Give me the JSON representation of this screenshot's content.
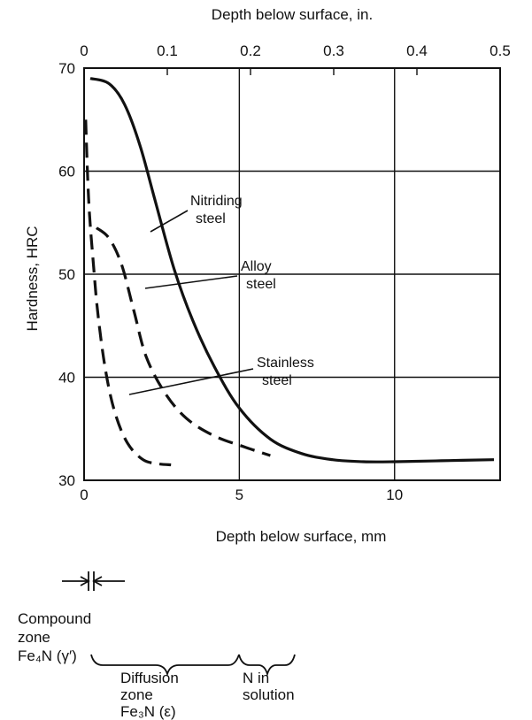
{
  "chart_data": {
    "type": "line",
    "title": "",
    "xlabel": "Depth below surface, mm",
    "x2label": "Depth below surface, in.",
    "ylabel": "Hardness, HRC",
    "xlim": [
      0,
      13.4
    ],
    "x2lim": [
      0,
      0.5
    ],
    "ylim": [
      30,
      70
    ],
    "xticks": [
      0,
      5,
      10
    ],
    "xtick_labels": [
      "0",
      "5",
      "10"
    ],
    "x2ticks": [
      0,
      0.1,
      0.2,
      0.3,
      0.4,
      0.5
    ],
    "x2tick_labels": [
      "0",
      "0.1",
      "0.2",
      "0.3",
      "0.4",
      "0.5"
    ],
    "yticks": [
      30,
      40,
      50,
      60,
      70
    ],
    "ytick_labels": [
      "30",
      "40",
      "50",
      "60",
      "70"
    ],
    "grid": true,
    "legend": "none",
    "series": [
      {
        "name": "Nitriding steel",
        "style": "solid",
        "x": [
          0.2,
          0.8,
          1.3,
          1.8,
          2.3,
          2.9,
          3.5,
          4.2,
          5.0,
          6.0,
          7.0,
          8.0,
          9.0,
          10.0,
          11.5,
          13.2
        ],
        "y": [
          69,
          68.5,
          66.5,
          62.5,
          57,
          50.5,
          45.5,
          41,
          37,
          34,
          32.6,
          32,
          31.8,
          31.8,
          31.9,
          32
        ]
      },
      {
        "name": "Alloy steel",
        "style": "dashed",
        "x": [
          0.4,
          0.8,
          1.2,
          1.6,
          2.0,
          2.6,
          3.3,
          4.2,
          5.2,
          6.0
        ],
        "y": [
          54.5,
          53.5,
          51,
          46.5,
          42,
          38.5,
          36,
          34.3,
          33.2,
          32.4
        ]
      },
      {
        "name": "Stainless steel",
        "style": "dashed",
        "x": [
          0.05,
          0.15,
          0.3,
          0.45,
          0.7,
          1.0,
          1.4,
          1.9,
          2.4,
          2.8
        ],
        "y": [
          65,
          57,
          51,
          46,
          40.5,
          36.5,
          33.6,
          32,
          31.6,
          31.5
        ]
      }
    ],
    "annotations": [
      {
        "lines": [
          "Nitriding",
          "steel"
        ],
        "points_to": "Nitriding steel"
      },
      {
        "lines": [
          "Alloy",
          "steel"
        ],
        "points_to": "Alloy steel"
      },
      {
        "lines": [
          "Stainless",
          "steel"
        ],
        "points_to": "Stainless steel"
      }
    ],
    "zones": [
      {
        "lines": [
          "Compound",
          "zone",
          "Fe₄N (γ′)"
        ]
      },
      {
        "lines": [
          "Diffusion",
          "zone",
          "Fe₃N (ε)"
        ]
      },
      {
        "lines": [
          "N in",
          "solution"
        ]
      }
    ]
  }
}
